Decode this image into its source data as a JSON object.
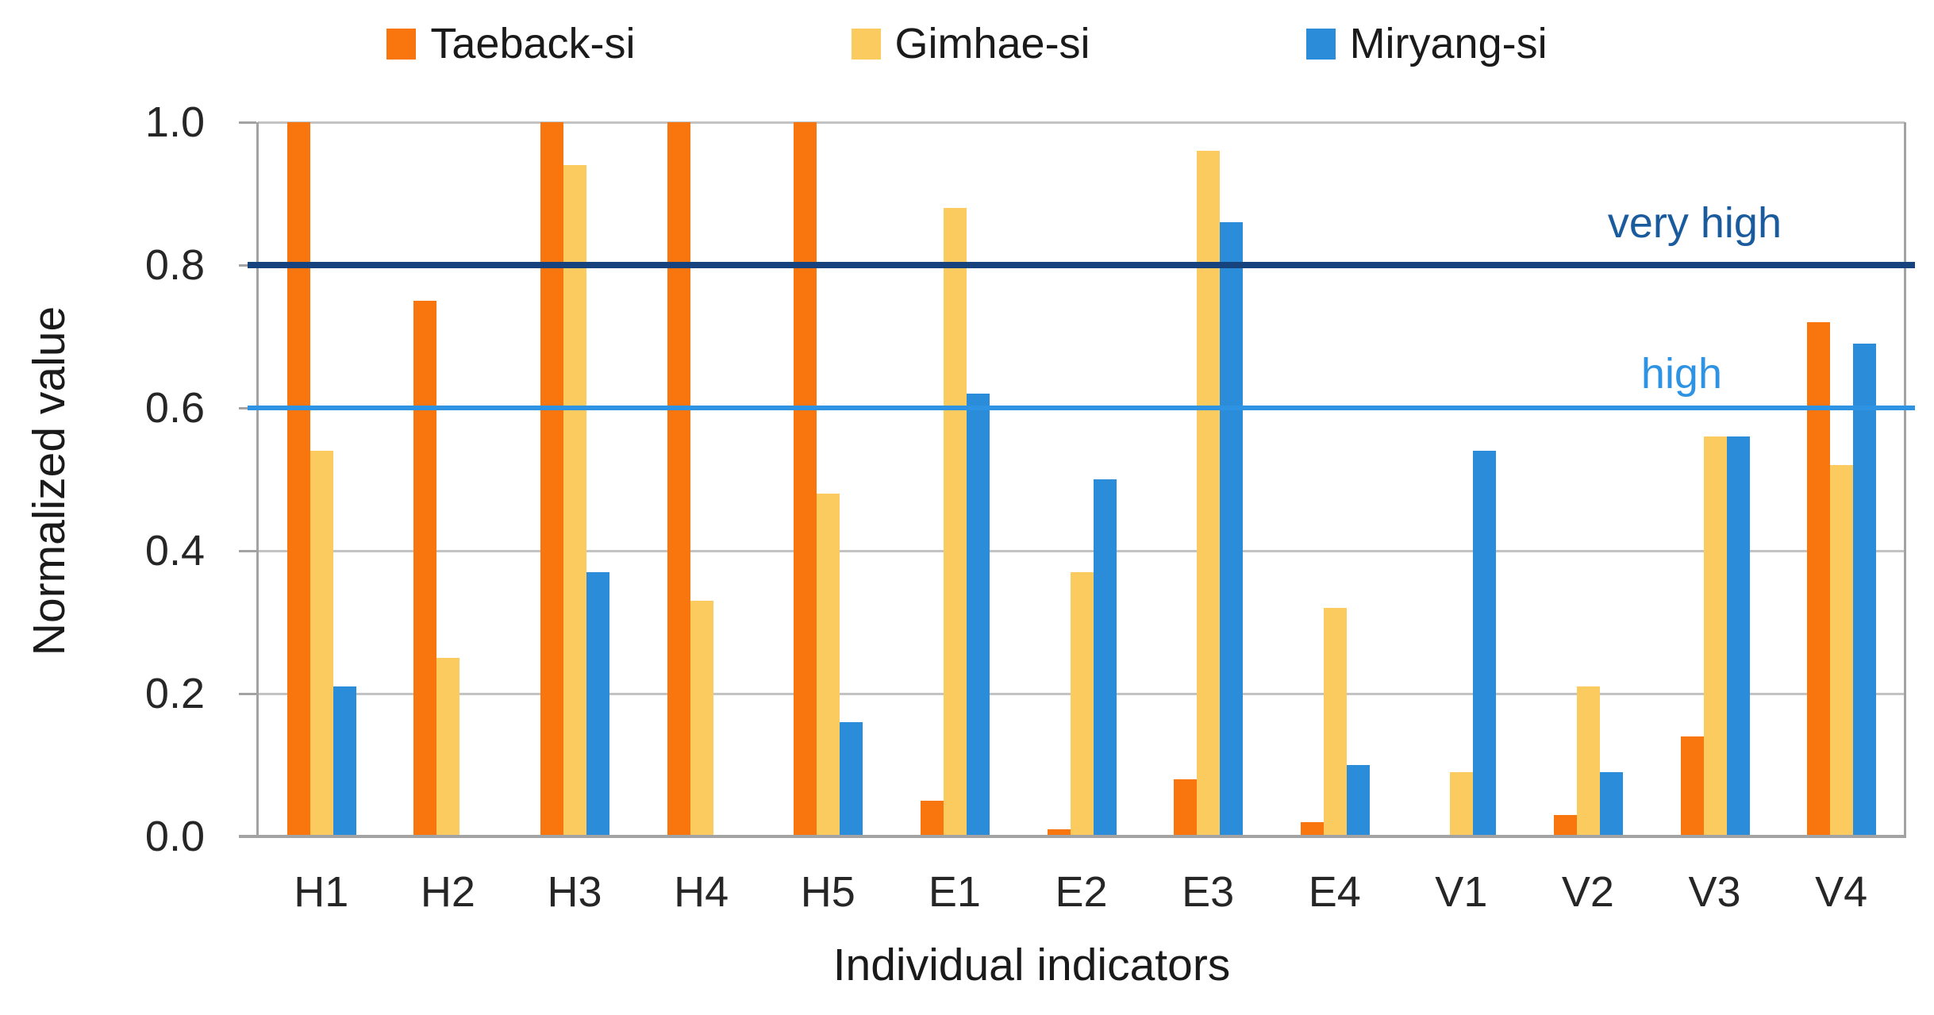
{
  "chart_data": {
    "type": "bar",
    "title": "",
    "xlabel": "Individual indicators",
    "ylabel": "Normalized value",
    "categories": [
      "H1",
      "H2",
      "H3",
      "H4",
      "H5",
      "E1",
      "E2",
      "E3",
      "E4",
      "V1",
      "V2",
      "V3",
      "V4"
    ],
    "series": [
      {
        "name": "Taeback-si",
        "color": "#F8760D",
        "values": [
          1.0,
          0.75,
          1.0,
          1.0,
          1.0,
          0.05,
          0.01,
          0.08,
          0.02,
          0.0,
          0.03,
          0.14,
          0.72
        ]
      },
      {
        "name": "Gimhae-si",
        "color": "#FBCB60",
        "values": [
          0.54,
          0.25,
          0.94,
          0.33,
          0.48,
          0.88,
          0.37,
          0.96,
          0.32,
          0.09,
          0.21,
          0.56,
          0.52
        ]
      },
      {
        "name": "Miryang-si",
        "color": "#2B8DD9",
        "values": [
          0.21,
          0.0,
          0.37,
          0.0,
          0.16,
          0.62,
          0.5,
          0.86,
          0.1,
          0.54,
          0.09,
          0.56,
          0.69
        ]
      }
    ],
    "reference_lines": [
      {
        "label": "very high",
        "value": 0.8,
        "line_color": "#16437E",
        "label_color": "#1A5B9E"
      },
      {
        "label": "high",
        "value": 0.6,
        "line_color": "#2E93E2",
        "label_color": "#2E93E2"
      }
    ],
    "ylim": [
      0,
      1
    ],
    "ytick_values": [
      1.0,
      0.8,
      0.6,
      0.4,
      0.2,
      0.0
    ],
    "ytick_labels": [
      "1.0",
      "0.8",
      "0.6",
      "0.4",
      "0.2",
      "0.0"
    ],
    "grid": true,
    "legend_position": "top-center",
    "style": {
      "grid_color": "#C3C3C3",
      "axis_color": "#A3A3A3",
      "tick_label_color": "#262626"
    }
  }
}
